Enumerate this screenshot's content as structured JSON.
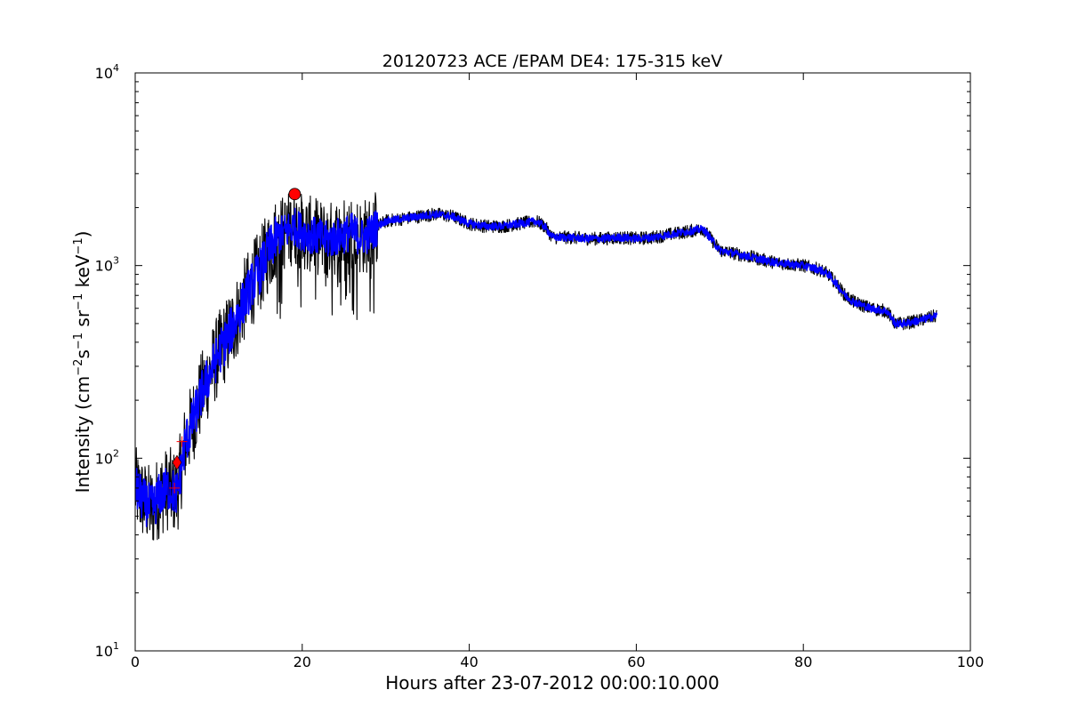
{
  "chart_data": {
    "type": "line",
    "title": "20120723 ACE /EPAM DE4: 175-315 keV",
    "xlabel": "Hours after 23-07-2012 00:00:10.000",
    "ylabel": "Intensity (cm$^{-2}$s$^{-1}$sr$^{-1}$keV$^{-1}$)",
    "xlim": [
      0,
      100
    ],
    "ylim": [
      10,
      10000
    ],
    "yscale": "log",
    "grid": false,
    "x_ticks": [
      "0",
      "20",
      "40",
      "60",
      "80",
      "100"
    ],
    "y_ticks": [
      "10^1",
      "10^2",
      "10^3",
      "10^4"
    ],
    "series": [
      {
        "role": "raw",
        "color": "#000000",
        "x": [
          0,
          1,
          2,
          3,
          4,
          5,
          6,
          7,
          8,
          9,
          10,
          11,
          12,
          13,
          14,
          15,
          16,
          17,
          18,
          19,
          20,
          21,
          22,
          23,
          24,
          25,
          26,
          27,
          28,
          29,
          30,
          32,
          34,
          36,
          38,
          40,
          42,
          44,
          46,
          48,
          49,
          50,
          52,
          54,
          56,
          58,
          60,
          62,
          64,
          66,
          68,
          70,
          72,
          74,
          76,
          78,
          80,
          82,
          83,
          84,
          85,
          86,
          88,
          90,
          91,
          92,
          94,
          96
        ],
        "y": [
          70,
          60,
          55,
          65,
          70,
          65,
          120,
          160,
          220,
          280,
          350,
          420,
          520,
          650,
          800,
          950,
          1200,
          1400,
          1500,
          1600,
          1500,
          1450,
          1400,
          1350,
          1400,
          1450,
          1500,
          1400,
          1450,
          1600,
          1700,
          1750,
          1800,
          1850,
          1800,
          1650,
          1600,
          1600,
          1650,
          1700,
          1600,
          1400,
          1400,
          1380,
          1380,
          1400,
          1380,
          1400,
          1450,
          1500,
          1550,
          1200,
          1150,
          1100,
          1050,
          1020,
          1000,
          950,
          900,
          800,
          700,
          650,
          600,
          580,
          500,
          500,
          520,
          550
        ]
      },
      {
        "role": "smoothed",
        "color": "#0000ff",
        "x": [
          0,
          1,
          2,
          3,
          4,
          5,
          6,
          7,
          8,
          9,
          10,
          11,
          12,
          13,
          14,
          15,
          16,
          17,
          18,
          19,
          20,
          21,
          22,
          23,
          24,
          25,
          26,
          27,
          28,
          29,
          30,
          32,
          34,
          36,
          38,
          40,
          42,
          44,
          46,
          48,
          49,
          50,
          52,
          54,
          56,
          58,
          60,
          62,
          64,
          66,
          68,
          70,
          72,
          74,
          76,
          78,
          80,
          82,
          83,
          84,
          85,
          86,
          88,
          90,
          91,
          92,
          94,
          96
        ],
        "y": [
          70,
          60,
          55,
          65,
          70,
          65,
          120,
          160,
          220,
          280,
          350,
          420,
          520,
          650,
          800,
          950,
          1200,
          1400,
          1500,
          1600,
          1500,
          1450,
          1400,
          1350,
          1400,
          1450,
          1500,
          1400,
          1450,
          1600,
          1700,
          1750,
          1800,
          1850,
          1800,
          1650,
          1600,
          1600,
          1650,
          1700,
          1600,
          1400,
          1400,
          1380,
          1380,
          1400,
          1380,
          1400,
          1450,
          1500,
          1550,
          1200,
          1150,
          1100,
          1050,
          1020,
          1000,
          950,
          900,
          800,
          700,
          650,
          600,
          580,
          500,
          500,
          520,
          550
        ]
      }
    ],
    "markers": [
      {
        "shape": "circle",
        "color": "#ff0000",
        "x": 19.1,
        "y": 2350
      },
      {
        "shape": "diamond",
        "color": "#ff0000",
        "x": 5.0,
        "y": 95
      },
      {
        "shape": "plus",
        "color": "#ff0000",
        "x": 4.7,
        "y": 70
      },
      {
        "shape": "plus",
        "color": "#ff0000",
        "x": 5.6,
        "y": 122
      }
    ]
  }
}
